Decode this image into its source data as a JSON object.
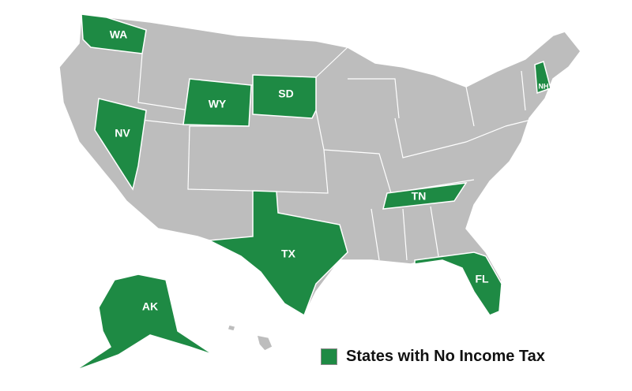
{
  "map": {
    "colors": {
      "highlighted": "#1e8a44",
      "other": "#bdbdbd",
      "border": "#ffffff"
    },
    "highlighted_states": [
      {
        "code": "WA"
      },
      {
        "code": "NV"
      },
      {
        "code": "WY"
      },
      {
        "code": "SD"
      },
      {
        "code": "TX"
      },
      {
        "code": "TN"
      },
      {
        "code": "FL"
      },
      {
        "code": "NH"
      },
      {
        "code": "AK"
      }
    ]
  },
  "legend": {
    "label": "States with No Income Tax",
    "color": "#1e8a44"
  }
}
